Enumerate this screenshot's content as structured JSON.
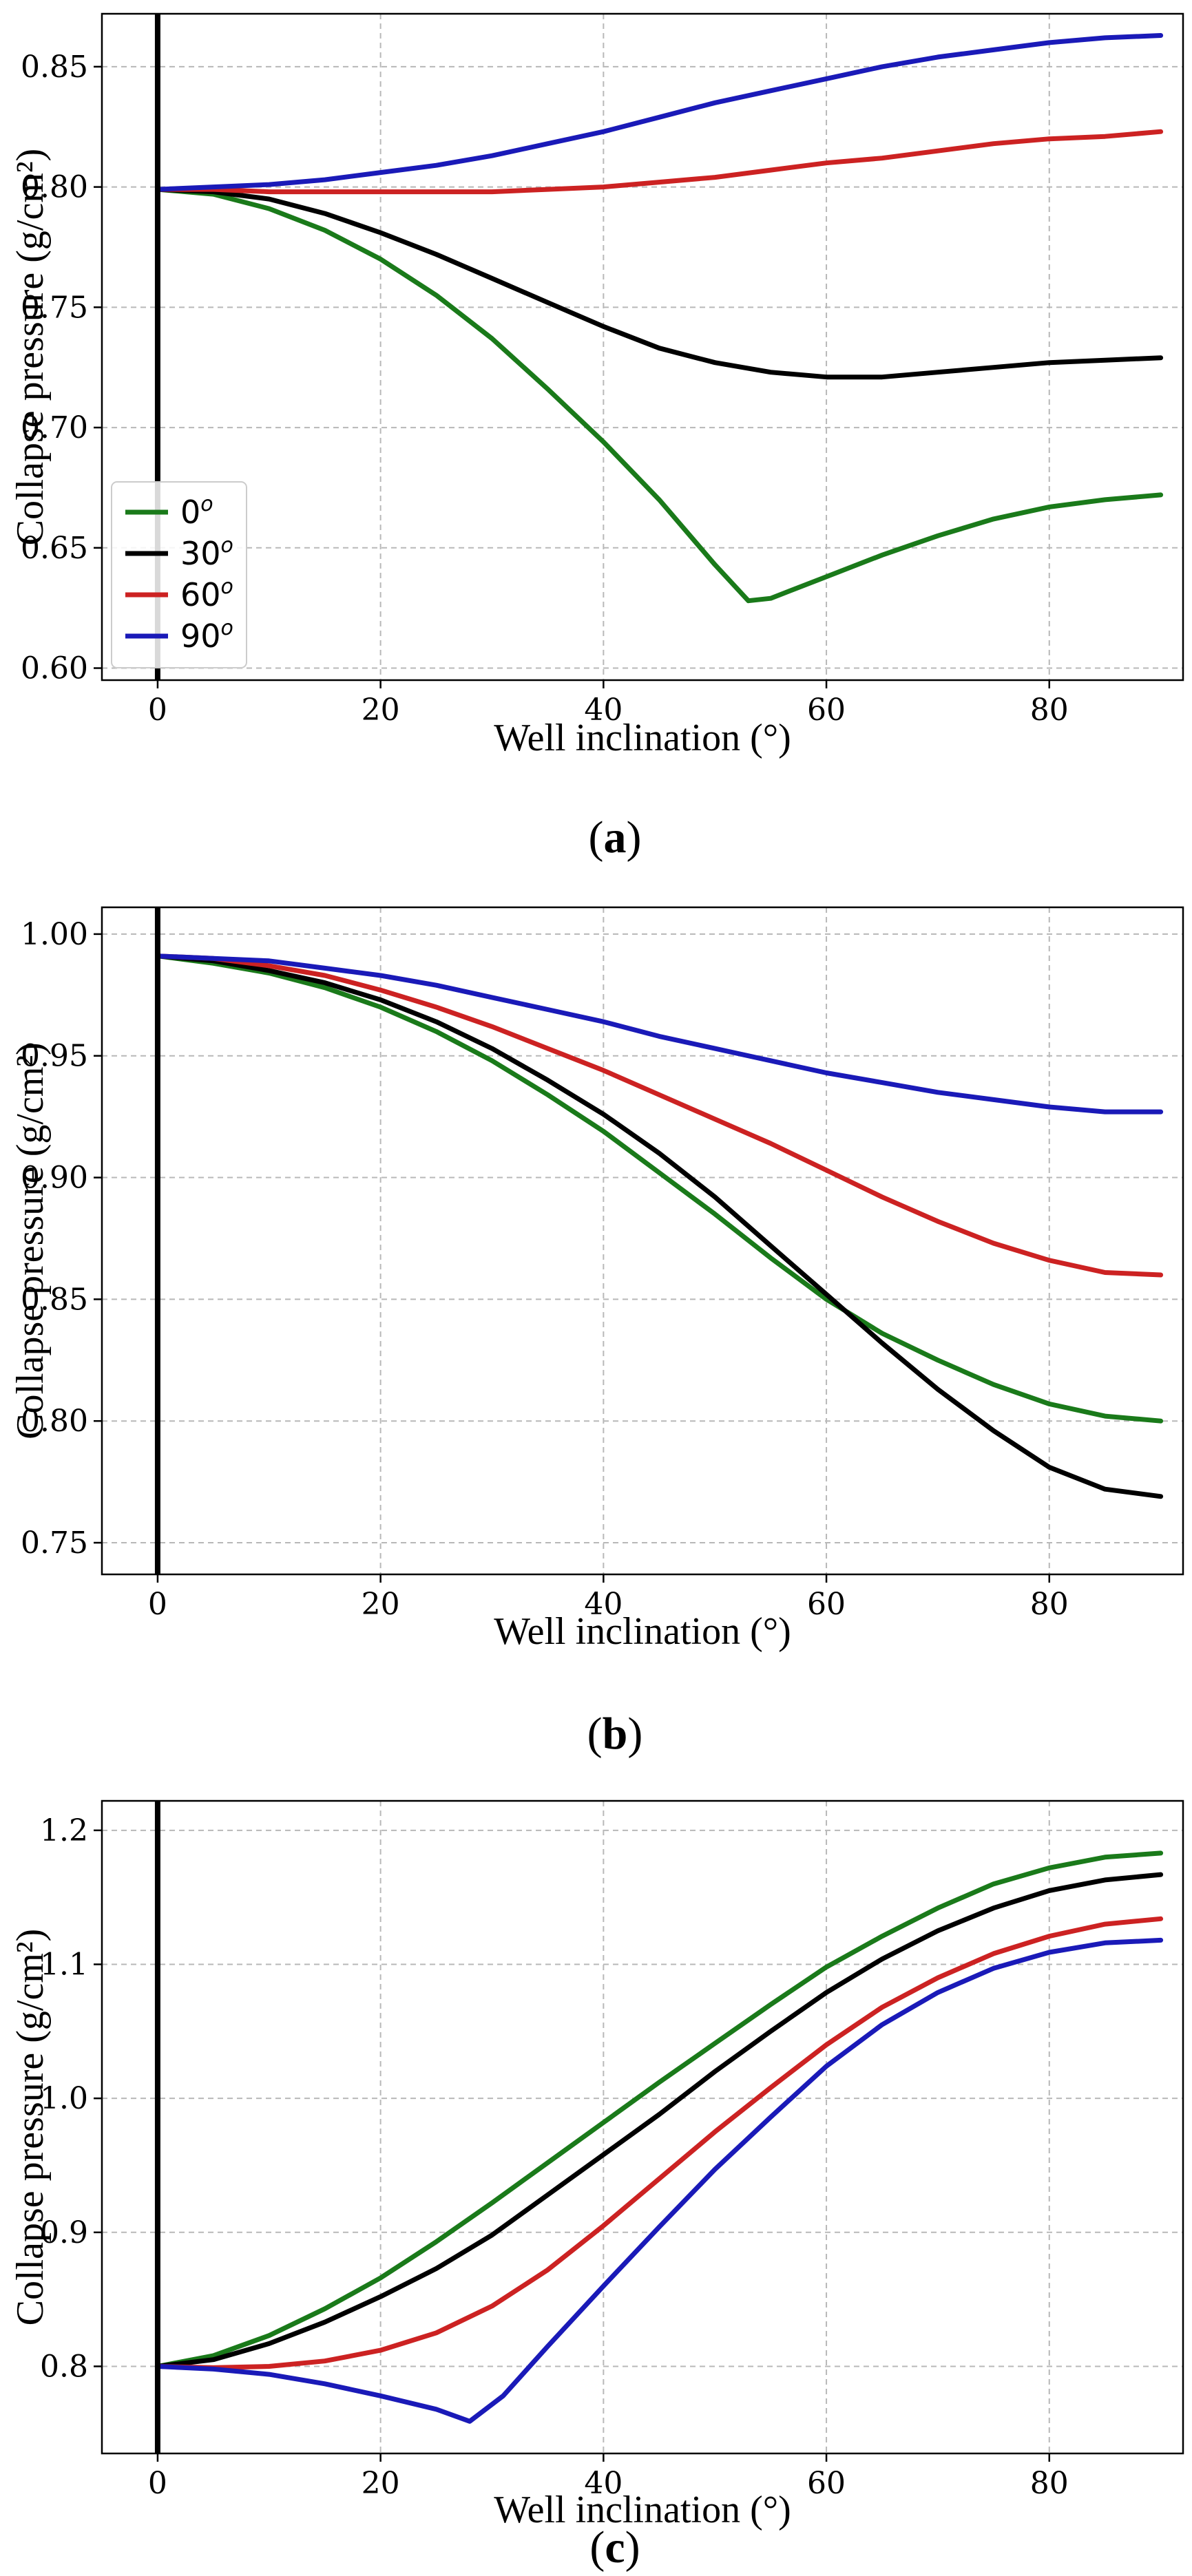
{
  "chart_data": [
    {
      "type": "line",
      "caption_letter": "a",
      "xlabel": "Well inclination (°)",
      "ylabel": "Collapse pressure (g/cm²)",
      "xlim": [
        -5,
        92
      ],
      "ylim": [
        0.595,
        0.872
      ],
      "xticks": [
        0,
        20,
        40,
        60,
        80
      ],
      "yticks": [
        0.6,
        0.65,
        0.7,
        0.75,
        0.8,
        0.85
      ],
      "ytick_labels": [
        "0.60",
        "0.65",
        "0.70",
        "0.75",
        "0.80",
        "0.85"
      ],
      "grid": true,
      "legend": "lower-left",
      "series": [
        {
          "name": "0",
          "color": "#1a7a1a",
          "x": [
            0,
            5,
            10,
            15,
            20,
            25,
            30,
            35,
            40,
            45,
            50,
            53,
            55,
            60,
            65,
            70,
            75,
            80,
            85,
            90
          ],
          "y": [
            0.799,
            0.797,
            0.791,
            0.782,
            0.77,
            0.755,
            0.737,
            0.716,
            0.694,
            0.67,
            0.643,
            0.628,
            0.629,
            0.638,
            0.647,
            0.655,
            0.662,
            0.667,
            0.67,
            0.672
          ]
        },
        {
          "name": "30",
          "color": "#000000",
          "x": [
            0,
            5,
            10,
            15,
            20,
            25,
            30,
            35,
            40,
            45,
            50,
            55,
            60,
            65,
            70,
            75,
            80,
            85,
            90
          ],
          "y": [
            0.799,
            0.798,
            0.795,
            0.789,
            0.781,
            0.772,
            0.762,
            0.752,
            0.742,
            0.733,
            0.727,
            0.723,
            0.721,
            0.721,
            0.723,
            0.725,
            0.727,
            0.728,
            0.729
          ]
        },
        {
          "name": "60",
          "color": "#cc2222",
          "x": [
            0,
            5,
            10,
            15,
            20,
            25,
            30,
            35,
            40,
            45,
            50,
            55,
            60,
            65,
            70,
            75,
            80,
            85,
            90
          ],
          "y": [
            0.799,
            0.799,
            0.798,
            0.798,
            0.798,
            0.798,
            0.798,
            0.799,
            0.8,
            0.802,
            0.804,
            0.807,
            0.81,
            0.812,
            0.815,
            0.818,
            0.82,
            0.821,
            0.823
          ]
        },
        {
          "name": "90",
          "color": "#1a1ab8",
          "x": [
            0,
            5,
            10,
            15,
            20,
            25,
            30,
            35,
            40,
            45,
            50,
            55,
            60,
            65,
            70,
            75,
            80,
            85,
            90
          ],
          "y": [
            0.799,
            0.8,
            0.801,
            0.803,
            0.806,
            0.809,
            0.813,
            0.818,
            0.823,
            0.829,
            0.835,
            0.84,
            0.845,
            0.85,
            0.854,
            0.857,
            0.86,
            0.862,
            0.863
          ]
        }
      ]
    },
    {
      "type": "line",
      "caption_letter": "b",
      "xlabel": "Well inclination (°)",
      "ylabel": "Collapse pressure (g/cm²)",
      "xlim": [
        -5,
        92
      ],
      "ylim": [
        0.737,
        1.011
      ],
      "xticks": [
        0,
        20,
        40,
        60,
        80
      ],
      "yticks": [
        0.75,
        0.8,
        0.85,
        0.9,
        0.95,
        1.0
      ],
      "ytick_labels": [
        "0.75",
        "0.80",
        "0.85",
        "0.90",
        "0.95",
        "1.00"
      ],
      "grid": true,
      "legend": "none",
      "series": [
        {
          "name": "0",
          "color": "#1a7a1a",
          "x": [
            0,
            5,
            10,
            15,
            20,
            25,
            30,
            35,
            40,
            45,
            50,
            55,
            60,
            65,
            70,
            75,
            80,
            85,
            90
          ],
          "y": [
            0.991,
            0.988,
            0.984,
            0.978,
            0.97,
            0.96,
            0.948,
            0.934,
            0.919,
            0.902,
            0.885,
            0.867,
            0.85,
            0.836,
            0.825,
            0.815,
            0.807,
            0.802,
            0.8
          ]
        },
        {
          "name": "30",
          "color": "#000000",
          "x": [
            0,
            5,
            10,
            15,
            20,
            25,
            30,
            35,
            40,
            45,
            50,
            55,
            60,
            65,
            70,
            75,
            80,
            85,
            90
          ],
          "y": [
            0.991,
            0.989,
            0.985,
            0.98,
            0.973,
            0.964,
            0.953,
            0.94,
            0.926,
            0.91,
            0.892,
            0.872,
            0.852,
            0.832,
            0.813,
            0.796,
            0.781,
            0.772,
            0.769
          ]
        },
        {
          "name": "60",
          "color": "#cc2222",
          "x": [
            0,
            5,
            10,
            15,
            20,
            25,
            30,
            35,
            40,
            45,
            50,
            55,
            60,
            65,
            70,
            75,
            80,
            85,
            90
          ],
          "y": [
            0.991,
            0.99,
            0.987,
            0.983,
            0.977,
            0.97,
            0.962,
            0.953,
            0.944,
            0.934,
            0.924,
            0.914,
            0.903,
            0.892,
            0.882,
            0.873,
            0.866,
            0.861,
            0.86
          ]
        },
        {
          "name": "90",
          "color": "#1a1ab8",
          "x": [
            0,
            5,
            10,
            15,
            20,
            25,
            30,
            35,
            40,
            45,
            50,
            55,
            60,
            65,
            70,
            75,
            80,
            85,
            90
          ],
          "y": [
            0.991,
            0.99,
            0.989,
            0.986,
            0.983,
            0.979,
            0.974,
            0.969,
            0.964,
            0.958,
            0.953,
            0.948,
            0.943,
            0.939,
            0.935,
            0.932,
            0.929,
            0.927,
            0.927
          ]
        }
      ]
    },
    {
      "type": "line",
      "caption_letter": "c",
      "xlabel": "Well inclination (°)",
      "ylabel": "Collapse pressure (g/cm²)",
      "xlim": [
        -5,
        92
      ],
      "ylim": [
        0.735,
        1.222
      ],
      "xticks": [
        0,
        20,
        40,
        60,
        80
      ],
      "yticks": [
        0.8,
        0.9,
        1.0,
        1.1,
        1.2
      ],
      "ytick_labels": [
        "0.8",
        "0.9",
        "1.0",
        "1.1",
        "1.2"
      ],
      "grid": true,
      "legend": "none",
      "series": [
        {
          "name": "0",
          "color": "#1a7a1a",
          "x": [
            0,
            5,
            10,
            15,
            20,
            25,
            30,
            35,
            40,
            45,
            50,
            55,
            60,
            65,
            70,
            75,
            80,
            85,
            90
          ],
          "y": [
            0.8,
            0.808,
            0.823,
            0.843,
            0.866,
            0.893,
            0.922,
            0.952,
            0.982,
            1.012,
            1.041,
            1.07,
            1.098,
            1.121,
            1.142,
            1.16,
            1.172,
            1.18,
            1.183
          ]
        },
        {
          "name": "30",
          "color": "#000000",
          "x": [
            0,
            5,
            10,
            15,
            20,
            25,
            30,
            35,
            40,
            45,
            50,
            55,
            60,
            65,
            70,
            75,
            80,
            85,
            90
          ],
          "y": [
            0.8,
            0.805,
            0.817,
            0.833,
            0.852,
            0.873,
            0.898,
            0.928,
            0.958,
            0.988,
            1.02,
            1.05,
            1.079,
            1.104,
            1.125,
            1.142,
            1.155,
            1.163,
            1.167
          ]
        },
        {
          "name": "60",
          "color": "#cc2222",
          "x": [
            0,
            5,
            10,
            15,
            20,
            25,
            30,
            35,
            40,
            45,
            50,
            55,
            60,
            65,
            70,
            75,
            80,
            85,
            90
          ],
          "y": [
            0.8,
            0.799,
            0.8,
            0.804,
            0.812,
            0.825,
            0.845,
            0.872,
            0.905,
            0.94,
            0.975,
            1.008,
            1.04,
            1.068,
            1.09,
            1.108,
            1.121,
            1.13,
            1.134
          ]
        },
        {
          "name": "90",
          "color": "#1a1ab8",
          "x": [
            0,
            5,
            10,
            15,
            20,
            25,
            28,
            31,
            35,
            40,
            45,
            50,
            55,
            60,
            65,
            70,
            75,
            80,
            85,
            90
          ],
          "y": [
            0.8,
            0.798,
            0.794,
            0.787,
            0.778,
            0.768,
            0.759,
            0.778,
            0.815,
            0.86,
            0.904,
            0.947,
            0.986,
            1.024,
            1.055,
            1.079,
            1.097,
            1.109,
            1.116,
            1.118
          ]
        }
      ]
    }
  ],
  "legend_entries": [
    {
      "label": "0",
      "sup": "o",
      "color": "#1a7a1a"
    },
    {
      "label": "30",
      "sup": "o",
      "color": "#000000"
    },
    {
      "label": "60",
      "sup": "o",
      "color": "#cc2222"
    },
    {
      "label": "90",
      "sup": "o",
      "color": "#1a1ab8"
    }
  ]
}
